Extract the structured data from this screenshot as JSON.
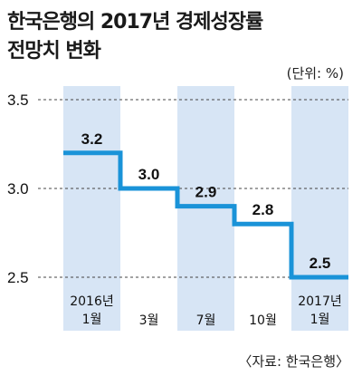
{
  "title_line1": "한국은행의 2017년 경제성장률",
  "title_line2": "전망치 변화",
  "unit": "(단위: %)",
  "source": "〈자료: 한국은행〉",
  "colors": {
    "band": "#d7e5f5",
    "line": "#1a93d8",
    "grid": "#444444"
  },
  "chart_data": {
    "type": "line",
    "title": "한국은행의 2017년 경제성장률 전망치 변화",
    "xlabel": "",
    "ylabel": "",
    "line_style": "step",
    "ylim": [
      2.5,
      3.5
    ],
    "yticks": [
      "3.5",
      "3.0",
      "2.5"
    ],
    "grid": "horizontal dashed",
    "categories": [
      [
        "2016년",
        "1월"
      ],
      [
        "3월"
      ],
      [
        "7월"
      ],
      [
        "10월"
      ],
      [
        "2017년",
        "1월"
      ]
    ],
    "values": [
      3.2,
      3.0,
      2.9,
      2.8,
      2.5
    ],
    "data_labels": [
      "3.2",
      "3.0",
      "2.9",
      "2.8",
      "2.5"
    ]
  }
}
